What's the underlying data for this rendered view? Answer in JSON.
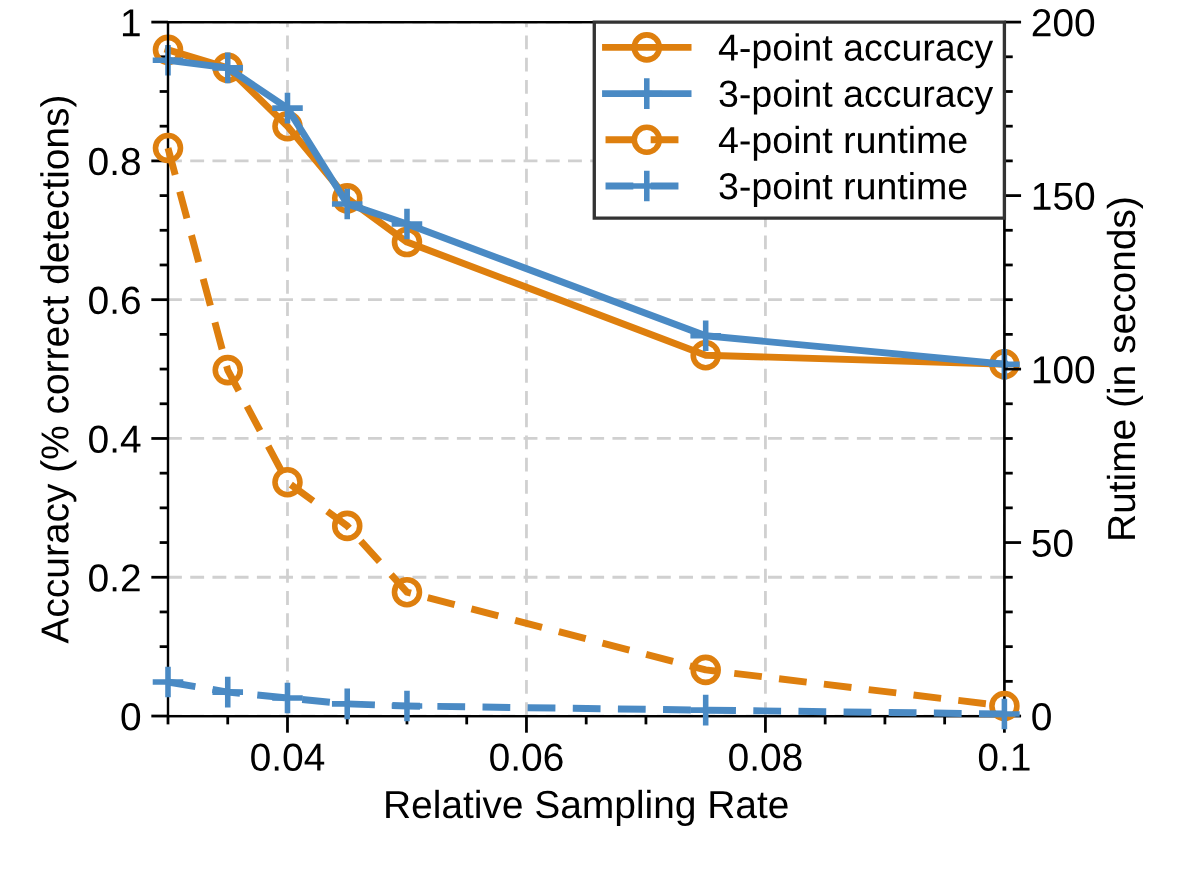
{
  "chart_data": {
    "type": "line",
    "xlabel": "Relative Sampling Rate",
    "ylabel": "Accuracy (% correct detections)",
    "y2label": "Rutime (in seconds)",
    "x": [
      0.03,
      0.035,
      0.04,
      0.045,
      0.05,
      0.075,
      0.1
    ],
    "xlim": [
      0.03,
      0.1
    ],
    "xticks": [
      0.04,
      0.06,
      0.08,
      0.1
    ],
    "ylim": [
      0,
      1
    ],
    "yticks": [
      0,
      0.2,
      0.4,
      0.6,
      0.8,
      1
    ],
    "y2lim": [
      0,
      200
    ],
    "y2ticks": [
      0,
      50,
      100,
      150,
      200
    ],
    "grid": true,
    "legend": "top right",
    "series": [
      {
        "name": "4-point accuracy",
        "color": "#de7f0e",
        "marker": "circle",
        "line_style": "solid",
        "values": [
          0.96,
          0.934,
          0.85,
          0.746,
          0.683,
          0.52,
          0.507
        ]
      },
      {
        "name": "3-point accuracy",
        "color": "#4a8ac4",
        "marker": "cross",
        "line_style": "solid",
        "values": [
          0.945,
          0.934,
          0.876,
          0.738,
          0.709,
          0.548,
          0.507
        ]
      },
      {
        "name": "4-point runtime",
        "color": "#de7f0e",
        "marker": "circle",
        "line_style": "dashed",
        "axis": "y2",
        "values": [
          163.7,
          99.7,
          67.4,
          54.8,
          35.7,
          13.3,
          2.9
        ]
      },
      {
        "name": "3-point runtime",
        "color": "#4a8ac4",
        "marker": "cross",
        "line_style": "dashed",
        "axis": "y2",
        "values": [
          9.8,
          6.9,
          5.2,
          3.5,
          2.9,
          1.7,
          0.6
        ]
      }
    ]
  }
}
